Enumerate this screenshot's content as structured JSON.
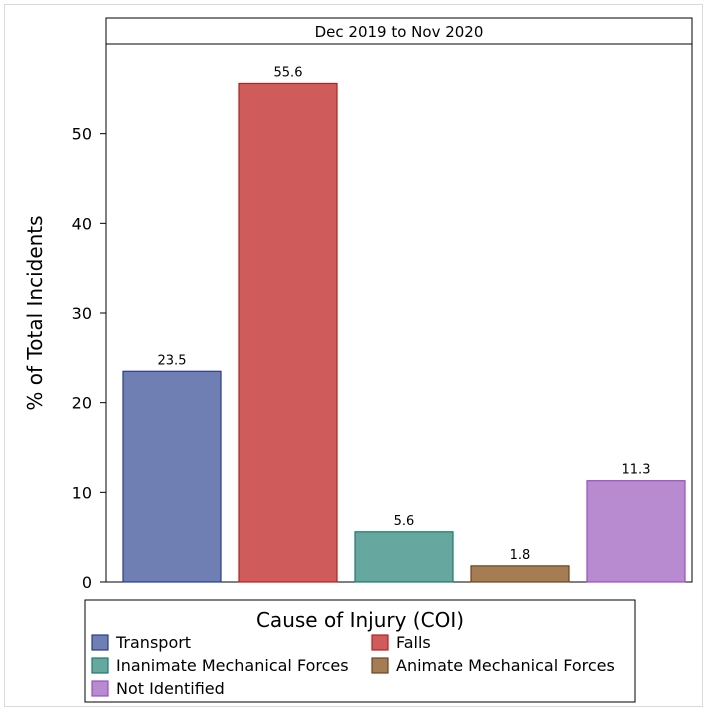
{
  "chart_data": {
    "type": "bar",
    "panel_title": "Dec 2019 to Nov 2020",
    "ylabel": "% of Total Incidents",
    "xlabel": "",
    "ylim": [
      0,
      60
    ],
    "yticks": [
      0,
      10,
      20,
      30,
      40,
      50
    ],
    "grid": false,
    "categories": [
      "Transport",
      "Falls",
      "Inanimate Mechanical Forces",
      "Animate Mechanical Forces",
      "Not Identified"
    ],
    "values": [
      23.5,
      55.6,
      5.6,
      1.8,
      11.3
    ],
    "value_labels": [
      "23.5",
      "55.6",
      "5.6",
      "1.8",
      "11.3"
    ],
    "colors": {
      "fill": [
        "#6f7fb4",
        "#d05b5b",
        "#66a8a0",
        "#a67d52",
        "#b88ad0"
      ],
      "stroke": [
        "#2b3c8c",
        "#b22222",
        "#1b7a6e",
        "#6b4423",
        "#9a4fc4"
      ]
    },
    "legend": {
      "title": "Cause of Injury (COI)",
      "placement": "bottom"
    }
  }
}
